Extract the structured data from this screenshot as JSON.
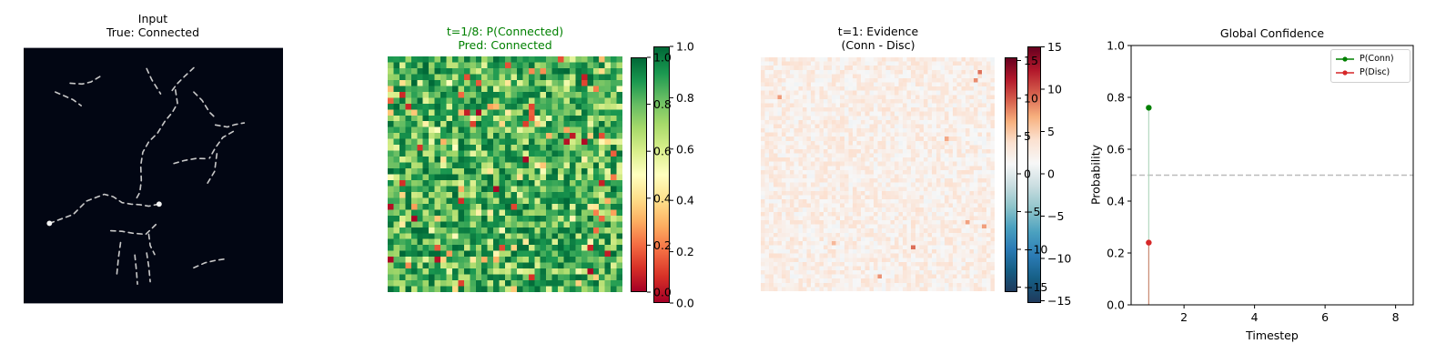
{
  "panels": {
    "input": {
      "title_line1": "Input",
      "title_line2": "True: Connected"
    },
    "prob": {
      "title_line1": "t=1/8: P(Connected)",
      "title_line2": "Pred: Connected",
      "title_color": "#008000",
      "colorbar_ticks": [
        "0.0",
        "0.2",
        "0.4",
        "0.6",
        "0.8",
        "1.0"
      ],
      "colorbar_values": [
        0,
        0.2,
        0.4,
        0.6,
        0.8,
        1.0
      ]
    },
    "evidence": {
      "title_line1": "t=1: Evidence",
      "title_line2": "(Conn - Disc)",
      "colorbar_ticks": [
        "15",
        "10",
        "5",
        "0",
        "−5",
        "−10",
        "−15"
      ],
      "colorbar_values": [
        15,
        10,
        5,
        0,
        -5,
        -10,
        -15
      ]
    }
  },
  "chart_data": {
    "type": "line",
    "title": "Global Confidence",
    "xlabel": "Timestep",
    "ylabel": "Probability",
    "xlim": [
      0.5,
      8.5
    ],
    "ylim": [
      0,
      1
    ],
    "xticks": [
      2,
      4,
      6,
      8
    ],
    "xtick_labels": [
      "2",
      "4",
      "6",
      "8"
    ],
    "yticks": [
      0,
      0.2,
      0.4,
      0.6,
      0.8,
      1.0
    ],
    "ytick_labels": [
      "0.0",
      "0.2",
      "0.4",
      "0.6",
      "0.8",
      "1.0"
    ],
    "reference_line": {
      "y": 0.5,
      "style": "dashed",
      "color": "#bbbbbb"
    },
    "legend_position": "top-right",
    "series": [
      {
        "name": "P(Conn)",
        "color": "#008000",
        "x": [
          1
        ],
        "y": [
          0.76
        ]
      },
      {
        "name": "P(Disc)",
        "color": "#d62728",
        "x": [
          1
        ],
        "y": [
          0.24
        ]
      }
    ]
  }
}
